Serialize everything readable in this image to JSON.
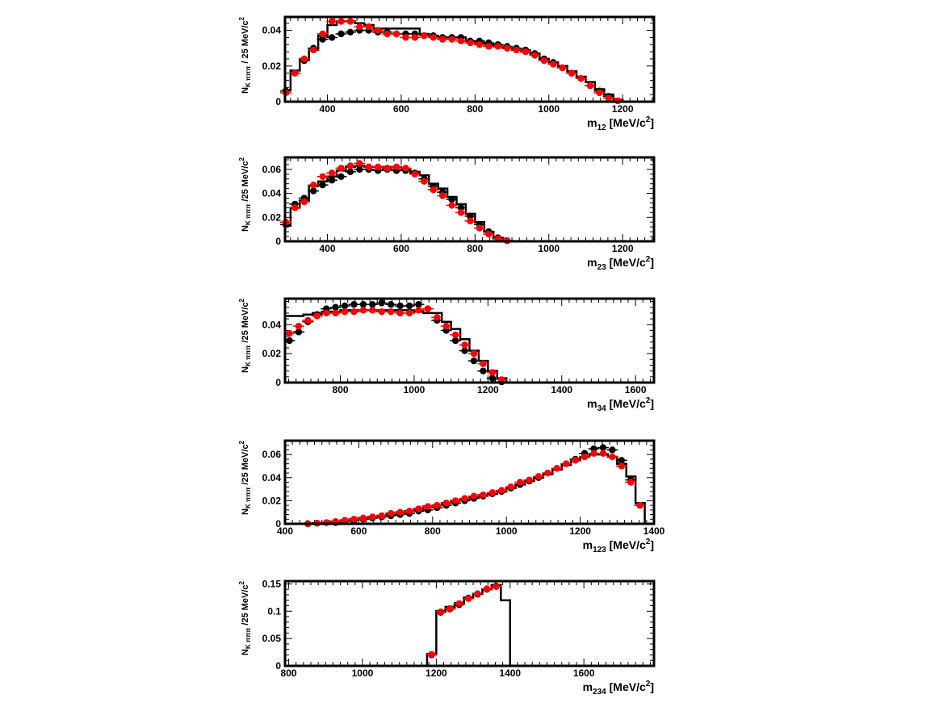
{
  "colors": {
    "series_a": "#000000",
    "series_b": "#ff0000",
    "histogram": "#000000",
    "frame": "#000000"
  },
  "chart_data": [
    {
      "type": "scatter",
      "xlabel": {
        "main": "m",
        "sub": "12",
        "unit": "[MeV/c",
        "sup": "2",
        "close": "]"
      },
      "ylabel": {
        "main": "N",
        "sub": "K πππ",
        "unit": "/ 25 MeV/c",
        "sup": "2"
      },
      "xlim": [
        285,
        1285
      ],
      "ylim": [
        0,
        0.0475
      ],
      "x_ticks": [
        400,
        600,
        800,
        1000,
        1200
      ],
      "y_ticks": [
        0,
        0.02,
        0.04
      ],
      "y_tick_labels": [
        "0",
        "0.02",
        "0.04"
      ],
      "x_minor": 20,
      "y_minor": 0.004,
      "histogram": {
        "edges": [
          275,
          300,
          325,
          350,
          375,
          400,
          425,
          450,
          475,
          500,
          525,
          550,
          575,
          600,
          625,
          650,
          675,
          700,
          725,
          750,
          775,
          800,
          825,
          850,
          875,
          900,
          925,
          950,
          975,
          1000,
          1025,
          1050,
          1075,
          1100,
          1125,
          1150,
          1175,
          1200,
          1225
        ],
        "values": [
          0.0065,
          0.0175,
          0.024,
          0.029,
          0.037,
          0.043,
          0.045,
          0.045,
          0.044,
          0.043,
          0.041,
          0.041,
          0.041,
          0.041,
          0.041,
          0.038,
          0.037,
          0.036,
          0.036,
          0.036,
          0.034,
          0.033,
          0.032,
          0.031,
          0.03,
          0.029,
          0.028,
          0.027,
          0.024,
          0.022,
          0.02,
          0.017,
          0.014,
          0.011,
          0.007,
          0.004,
          0.001,
          0.0
        ]
      },
      "series": [
        {
          "color_key": "series_a",
          "x": [
            287,
            312,
            337,
            362,
            387,
            412,
            437,
            462,
            487,
            512,
            537,
            562,
            587,
            612,
            637,
            662,
            687,
            712,
            737,
            762,
            787,
            812,
            837,
            862,
            887,
            912,
            937,
            962,
            987,
            1012,
            1037,
            1062,
            1087,
            1112,
            1137,
            1162,
            1187
          ],
          "y": [
            0.006,
            0.016,
            0.023,
            0.03,
            0.035,
            0.036,
            0.038,
            0.039,
            0.04,
            0.04,
            0.039,
            0.039,
            0.038,
            0.038,
            0.038,
            0.037,
            0.037,
            0.036,
            0.036,
            0.036,
            0.034,
            0.034,
            0.033,
            0.032,
            0.031,
            0.03,
            0.029,
            0.027,
            0.024,
            0.022,
            0.019,
            0.016,
            0.013,
            0.009,
            0.006,
            0.003,
            0.0005
          ]
        },
        {
          "color_key": "series_b",
          "x": [
            287,
            312,
            337,
            362,
            387,
            412,
            437,
            462,
            487,
            512,
            537,
            562,
            587,
            612,
            637,
            662,
            687,
            712,
            737,
            762,
            787,
            812,
            837,
            862,
            887,
            912,
            937,
            962,
            987,
            1012,
            1037,
            1062,
            1087,
            1112,
            1137,
            1162,
            1187
          ],
          "y": [
            0.005,
            0.016,
            0.024,
            0.029,
            0.038,
            0.045,
            0.045,
            0.045,
            0.042,
            0.042,
            0.04,
            0.038,
            0.038,
            0.036,
            0.036,
            0.037,
            0.036,
            0.035,
            0.035,
            0.034,
            0.033,
            0.032,
            0.031,
            0.031,
            0.03,
            0.029,
            0.028,
            0.026,
            0.023,
            0.021,
            0.019,
            0.016,
            0.013,
            0.009,
            0.005,
            0.002,
            0.0005
          ]
        }
      ]
    },
    {
      "type": "scatter",
      "xlabel": {
        "main": "m",
        "sub": "23",
        "unit": "[MeV/c",
        "sup": "2",
        "close": "]"
      },
      "ylabel": {
        "main": "N",
        "sub": "K πππ",
        "unit": "/25 MeV/c",
        "sup": "2"
      },
      "xlim": [
        285,
        1285
      ],
      "ylim": [
        0,
        0.07
      ],
      "x_ticks": [
        400,
        600,
        800,
        1000,
        1200
      ],
      "y_ticks": [
        0,
        0.02,
        0.04,
        0.06
      ],
      "y_tick_labels": [
        "0",
        "0.02",
        "0.04",
        "0.06"
      ],
      "x_minor": 20,
      "y_minor": 0.004,
      "histogram": {
        "edges": [
          275,
          300,
          325,
          350,
          375,
          400,
          425,
          450,
          475,
          500,
          525,
          550,
          575,
          600,
          625,
          650,
          675,
          700,
          725,
          750,
          775,
          800,
          825,
          850,
          875,
          900,
          925
        ],
        "values": [
          0.013,
          0.028,
          0.034,
          0.046,
          0.05,
          0.054,
          0.059,
          0.062,
          0.063,
          0.062,
          0.062,
          0.062,
          0.062,
          0.06,
          0.058,
          0.055,
          0.048,
          0.044,
          0.037,
          0.031,
          0.023,
          0.016,
          0.008,
          0.003,
          0.0005,
          0.0
        ]
      },
      "series": [
        {
          "color_key": "series_a",
          "x": [
            287,
            312,
            337,
            362,
            387,
            412,
            437,
            462,
            487,
            512,
            537,
            562,
            587,
            612,
            637,
            662,
            687,
            712,
            737,
            762,
            787,
            812,
            837,
            862,
            887
          ],
          "y": [
            0.014,
            0.031,
            0.036,
            0.042,
            0.047,
            0.051,
            0.054,
            0.058,
            0.06,
            0.06,
            0.059,
            0.06,
            0.059,
            0.059,
            0.057,
            0.052,
            0.046,
            0.041,
            0.035,
            0.028,
            0.021,
            0.014,
            0.008,
            0.003,
            0.0005
          ]
        },
        {
          "color_key": "series_b",
          "x": [
            287,
            312,
            337,
            362,
            387,
            412,
            437,
            462,
            487,
            512,
            537,
            562,
            587,
            612,
            637,
            662,
            687,
            712,
            737,
            762,
            787,
            812,
            837,
            862,
            887
          ],
          "y": [
            0.016,
            0.028,
            0.033,
            0.047,
            0.054,
            0.057,
            0.061,
            0.063,
            0.065,
            0.062,
            0.062,
            0.061,
            0.062,
            0.061,
            0.056,
            0.05,
            0.043,
            0.038,
            0.03,
            0.024,
            0.017,
            0.011,
            0.006,
            0.002,
            0.0005
          ]
        }
      ]
    },
    {
      "type": "scatter",
      "xlabel": {
        "main": "m",
        "sub": "34",
        "unit": "[MeV/c",
        "sup": "2",
        "close": "]"
      },
      "ylabel": {
        "main": "N",
        "sub": "K πππ",
        "unit": "/25 MeV/c",
        "sup": "2"
      },
      "xlim": [
        650,
        1650
      ],
      "ylim": [
        0,
        0.058
      ],
      "x_ticks": [
        800,
        1000,
        1200,
        1400,
        1600
      ],
      "y_ticks": [
        0,
        0.02,
        0.04
      ],
      "y_tick_labels": [
        "0",
        "0.02",
        "0.04"
      ],
      "x_minor": 20,
      "y_minor": 0.004,
      "histogram": {
        "edges": [
          650,
          675,
          700,
          725,
          750,
          775,
          800,
          825,
          850,
          875,
          900,
          925,
          950,
          975,
          1000,
          1025,
          1050,
          1075,
          1100,
          1125,
          1150,
          1175,
          1200,
          1225,
          1250,
          1275
        ],
        "values": [
          0.046,
          0.046,
          0.047,
          0.048,
          0.049,
          0.049,
          0.05,
          0.05,
          0.05,
          0.05,
          0.05,
          0.05,
          0.05,
          0.05,
          0.049,
          0.048,
          0.048,
          0.042,
          0.037,
          0.03,
          0.022,
          0.015,
          0.008,
          0.003,
          0.0
        ]
      },
      "series": [
        {
          "color_key": "series_a",
          "x": [
            662,
            687,
            712,
            737,
            762,
            787,
            812,
            837,
            862,
            887,
            912,
            937,
            962,
            987,
            1012,
            1037,
            1062,
            1087,
            1112,
            1137,
            1162,
            1187,
            1212,
            1237
          ],
          "y": [
            0.029,
            0.035,
            0.042,
            0.047,
            0.051,
            0.052,
            0.053,
            0.054,
            0.054,
            0.054,
            0.055,
            0.054,
            0.053,
            0.053,
            0.054,
            0.051,
            0.043,
            0.036,
            0.029,
            0.022,
            0.015,
            0.008,
            0.003,
            0.0005
          ]
        },
        {
          "color_key": "series_b",
          "x": [
            662,
            687,
            712,
            737,
            762,
            787,
            812,
            837,
            862,
            887,
            912,
            937,
            962,
            987,
            1012,
            1037,
            1062,
            1087,
            1112,
            1137,
            1162,
            1187,
            1212,
            1237
          ],
          "y": [
            0.034,
            0.039,
            0.043,
            0.046,
            0.048,
            0.048,
            0.049,
            0.049,
            0.05,
            0.05,
            0.049,
            0.049,
            0.048,
            0.048,
            0.05,
            0.051,
            0.045,
            0.039,
            0.033,
            0.026,
            0.02,
            0.013,
            0.007,
            0.002
          ]
        }
      ]
    },
    {
      "type": "scatter",
      "xlabel": {
        "main": "m",
        "sub": "123",
        "unit": "[MeV/c",
        "sup": "2",
        "close": "]"
      },
      "ylabel": {
        "main": "N",
        "sub": "K πππ",
        "unit": "/25 MeV/c",
        "sup": "2"
      },
      "xlim": [
        400,
        1400
      ],
      "ylim": [
        0,
        0.072
      ],
      "x_ticks": [
        400,
        600,
        800,
        1000,
        1200,
        1400
      ],
      "y_ticks": [
        0,
        0.02,
        0.04,
        0.06
      ],
      "y_tick_labels": [
        "0",
        "0.02",
        "0.04",
        "0.06"
      ],
      "x_minor": 20,
      "y_minor": 0.004,
      "histogram": {
        "edges": [
          450,
          475,
          500,
          525,
          550,
          575,
          600,
          625,
          650,
          675,
          700,
          725,
          750,
          775,
          800,
          825,
          850,
          875,
          900,
          925,
          950,
          975,
          1000,
          1025,
          1050,
          1075,
          1100,
          1125,
          1150,
          1175,
          1200,
          1225,
          1250,
          1275,
          1300,
          1325,
          1350,
          1375
        ],
        "values": [
          0.0,
          0.0005,
          0.001,
          0.002,
          0.003,
          0.004,
          0.005,
          0.006,
          0.007,
          0.009,
          0.01,
          0.011,
          0.013,
          0.015,
          0.016,
          0.018,
          0.02,
          0.021,
          0.023,
          0.025,
          0.026,
          0.028,
          0.031,
          0.034,
          0.037,
          0.04,
          0.043,
          0.047,
          0.051,
          0.055,
          0.058,
          0.06,
          0.06,
          0.058,
          0.052,
          0.041,
          0.018
        ]
      },
      "series": [
        {
          "color_key": "series_a",
          "x": [
            462,
            487,
            512,
            537,
            562,
            587,
            612,
            637,
            662,
            687,
            712,
            737,
            762,
            787,
            812,
            837,
            862,
            887,
            912,
            937,
            962,
            987,
            1012,
            1037,
            1062,
            1087,
            1112,
            1137,
            1162,
            1187,
            1212,
            1237,
            1262,
            1287,
            1312,
            1337,
            1362
          ],
          "y": [
            0.0,
            0.0005,
            0.001,
            0.001,
            0.002,
            0.003,
            0.004,
            0.005,
            0.006,
            0.007,
            0.008,
            0.009,
            0.011,
            0.012,
            0.014,
            0.016,
            0.018,
            0.02,
            0.022,
            0.024,
            0.026,
            0.028,
            0.031,
            0.034,
            0.037,
            0.04,
            0.044,
            0.048,
            0.052,
            0.056,
            0.061,
            0.065,
            0.066,
            0.064,
            0.055,
            0.038,
            0.016
          ]
        },
        {
          "color_key": "series_b",
          "x": [
            462,
            487,
            512,
            537,
            562,
            587,
            612,
            637,
            662,
            687,
            712,
            737,
            762,
            787,
            812,
            837,
            862,
            887,
            912,
            937,
            962,
            987,
            1012,
            1037,
            1062,
            1087,
            1112,
            1137,
            1162,
            1187,
            1212,
            1237,
            1262,
            1287,
            1312,
            1337,
            1362
          ],
          "y": [
            0.0,
            0.0005,
            0.001,
            0.002,
            0.003,
            0.004,
            0.005,
            0.006,
            0.007,
            0.009,
            0.01,
            0.011,
            0.013,
            0.015,
            0.016,
            0.018,
            0.02,
            0.022,
            0.024,
            0.025,
            0.027,
            0.029,
            0.032,
            0.036,
            0.038,
            0.041,
            0.044,
            0.048,
            0.052,
            0.055,
            0.058,
            0.061,
            0.061,
            0.058,
            0.05,
            0.036,
            0.016
          ]
        }
      ]
    },
    {
      "type": "scatter",
      "xlabel": {
        "main": "m",
        "sub": "234",
        "unit": "[MeV/c",
        "sup": "2",
        "close": "]"
      },
      "ylabel": {
        "main": "N",
        "sub": "K πππ",
        "unit": "/25 MeV/c",
        "sup": "2"
      },
      "xlim": [
        790,
        1790
      ],
      "ylim": [
        0,
        0.155
      ],
      "x_ticks": [
        800,
        1000,
        1200,
        1400,
        1600
      ],
      "y_ticks": [
        0,
        0.05,
        0.1,
        0.15
      ],
      "y_tick_labels": [
        "0",
        "0.05",
        "0.1",
        "0.15"
      ],
      "x_minor": 20,
      "y_minor": 0.01,
      "histogram": {
        "edges": [
          1175,
          1200,
          1225,
          1250,
          1275,
          1300,
          1325,
          1350,
          1375,
          1400
        ],
        "values": [
          0.022,
          0.1,
          0.108,
          0.115,
          0.125,
          0.132,
          0.14,
          0.148,
          0.12
        ]
      },
      "series": [
        {
          "color_key": "series_a",
          "x": [
            1187,
            1212,
            1237,
            1262,
            1287,
            1312,
            1337,
            1362
          ],
          "y": [
            0.02,
            0.098,
            0.104,
            0.112,
            0.124,
            0.131,
            0.14,
            0.146
          ]
        },
        {
          "color_key": "series_b",
          "x": [
            1187,
            1212,
            1237,
            1262,
            1287,
            1312,
            1337,
            1362
          ],
          "y": [
            0.021,
            0.099,
            0.105,
            0.114,
            0.123,
            0.132,
            0.141,
            0.145
          ]
        }
      ]
    }
  ]
}
